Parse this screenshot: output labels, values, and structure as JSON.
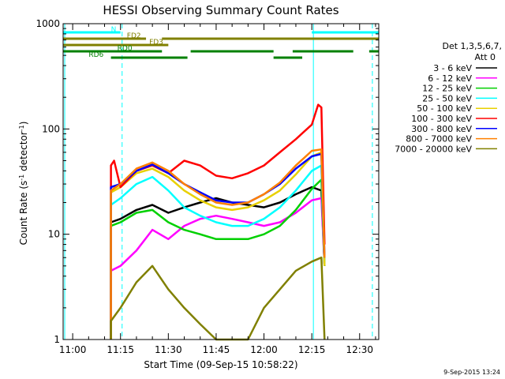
{
  "chart_data": {
    "type": "line",
    "title": "HESSI Observing Summary Count Rates",
    "xlabel": "Start Time (09-Sep-15 10:58:22)",
    "ylabel": "Count Rate (s",
    "ylabel_sup": "-1",
    "ylabel_mid": " detector",
    "ylabel_sup2": "-1",
    "ylabel_end": ")",
    "y_scale": "log",
    "ylim": [
      1,
      1000
    ],
    "xlim_minutes": [
      -3,
      96
    ],
    "x_ticks": [
      {
        "label": "11:00",
        "t": 0
      },
      {
        "label": "11:15",
        "t": 15
      },
      {
        "label": "11:30",
        "t": 30
      },
      {
        "label": "11:45",
        "t": 45
      },
      {
        "label": "12:00",
        "t": 60
      },
      {
        "label": "12:15",
        "t": 75
      },
      {
        "label": "12:30",
        "t": 90
      }
    ],
    "y_ticks": [
      {
        "label": "1",
        "v": 1
      },
      {
        "label": "10",
        "v": 10
      },
      {
        "label": "100",
        "v": 100
      },
      {
        "label": "1000",
        "v": 1000
      }
    ],
    "legend": {
      "header1": "Det 1,3,5,6,7,",
      "header2": "Att 0",
      "placement": "right"
    },
    "series": [
      {
        "name": "3 - 6 keV",
        "color": "#000000",
        "t": [
          12,
          15,
          20,
          25,
          30,
          35,
          40,
          45,
          50,
          55,
          60,
          65,
          70,
          75,
          78,
          79
        ],
        "v": [
          13,
          14,
          17,
          19,
          16,
          18,
          20,
          22,
          20,
          19,
          18,
          20,
          24,
          28,
          26,
          5
        ]
      },
      {
        "name": "6 - 12 keV",
        "color": "#ff00ff",
        "t": [
          12,
          15,
          20,
          25,
          30,
          35,
          40,
          45,
          50,
          55,
          60,
          65,
          70,
          75,
          78,
          79
        ],
        "v": [
          4.5,
          5,
          7,
          11,
          9,
          12,
          14,
          15,
          14,
          13,
          12,
          13,
          16,
          21,
          22,
          5
        ]
      },
      {
        "name": "12 - 25 keV",
        "color": "#00d000",
        "t": [
          12,
          15,
          20,
          25,
          30,
          35,
          40,
          45,
          50,
          55,
          60,
          65,
          70,
          75,
          78,
          79
        ],
        "v": [
          12,
          13,
          16,
          17,
          13,
          11,
          10,
          9,
          9,
          9,
          10,
          12,
          17,
          27,
          33,
          5
        ]
      },
      {
        "name": "25 - 50 keV",
        "color": "#00ffff",
        "t": [
          12,
          15,
          20,
          25,
          30,
          35,
          40,
          45,
          50,
          55,
          60,
          65,
          70,
          75,
          78,
          79
        ],
        "v": [
          19,
          22,
          30,
          35,
          26,
          18,
          15,
          13,
          12,
          12,
          14,
          18,
          26,
          40,
          45,
          5
        ]
      },
      {
        "name": "50 - 100 keV",
        "color": "#e8d000",
        "t": [
          12,
          15,
          20,
          25,
          30,
          35,
          40,
          45,
          50,
          55,
          60,
          65,
          70,
          75,
          78,
          79
        ],
        "v": [
          25,
          28,
          38,
          42,
          35,
          26,
          21,
          18,
          17,
          18,
          21,
          26,
          37,
          55,
          60,
          5
        ]
      },
      {
        "name": "100 - 300 keV",
        "color": "#ff0000",
        "t": [
          12,
          13,
          15,
          20,
          25,
          30,
          35,
          40,
          45,
          50,
          55,
          60,
          65,
          70,
          75,
          77,
          78,
          79
        ],
        "v": [
          45,
          50,
          28,
          40,
          45,
          38,
          50,
          45,
          36,
          34,
          38,
          45,
          60,
          80,
          110,
          170,
          160,
          8
        ]
      },
      {
        "name": "300 - 800 keV",
        "color": "#0000ff",
        "t": [
          12,
          15,
          20,
          25,
          30,
          35,
          40,
          45,
          50,
          55,
          60,
          65,
          70,
          75,
          78,
          79
        ],
        "v": [
          28,
          30,
          40,
          46,
          38,
          30,
          25,
          21,
          20,
          20,
          24,
          30,
          42,
          55,
          58,
          6
        ]
      },
      {
        "name": "800 - 7000 keV",
        "color": "#ff8000",
        "t": [
          12,
          15,
          20,
          25,
          30,
          35,
          40,
          45,
          50,
          55,
          60,
          65,
          70,
          75,
          78,
          79
        ],
        "v": [
          26,
          30,
          42,
          48,
          40,
          30,
          24,
          20,
          19,
          20,
          24,
          31,
          45,
          62,
          64,
          6
        ]
      },
      {
        "name": "7000 - 20000 keV",
        "color": "#808000",
        "t": [
          12,
          15,
          20,
          25,
          30,
          35,
          40,
          45,
          50,
          55,
          60,
          65,
          70,
          75,
          78,
          79
        ],
        "v": [
          1.5,
          2,
          3.5,
          5,
          3,
          2,
          1.4,
          1,
          1,
          1,
          2,
          3,
          4.5,
          5.5,
          6,
          1
        ]
      }
    ],
    "state_bars": [
      {
        "label": "N",
        "color": "#00ffff",
        "level": 0,
        "segments": [
          [
            -3,
            15
          ],
          [
            75,
            96
          ]
        ]
      },
      {
        "label": "FD2",
        "color": "#808000",
        "level": 1,
        "segments": [
          [
            -3,
            23
          ],
          [
            28,
            96
          ]
        ]
      },
      {
        "label": "FD3",
        "color": "#808000",
        "level": 2,
        "segments": [
          [
            -3,
            30
          ]
        ]
      },
      {
        "label": "RD0",
        "color": "#008000",
        "level": 3,
        "segments": [
          [
            -3,
            28
          ],
          [
            37,
            63
          ],
          [
            69,
            88
          ],
          [
            93,
            96
          ]
        ]
      },
      {
        "label": "RD6",
        "color": "#008000",
        "level": 4,
        "segments": [
          [
            12,
            36
          ],
          [
            63,
            72
          ]
        ]
      }
    ],
    "vlines": [
      {
        "t": -2.5,
        "color": "#00ffff",
        "style": "solid"
      },
      {
        "t": 15.5,
        "color": "#00ffff",
        "style": "dashed"
      },
      {
        "t": 75.5,
        "color": "#00ffff",
        "style": "solid"
      },
      {
        "t": 94,
        "color": "#00ffff",
        "style": "dashed"
      }
    ]
  },
  "footer": {
    "timestamp": "9-Sep-2015 13:24"
  }
}
